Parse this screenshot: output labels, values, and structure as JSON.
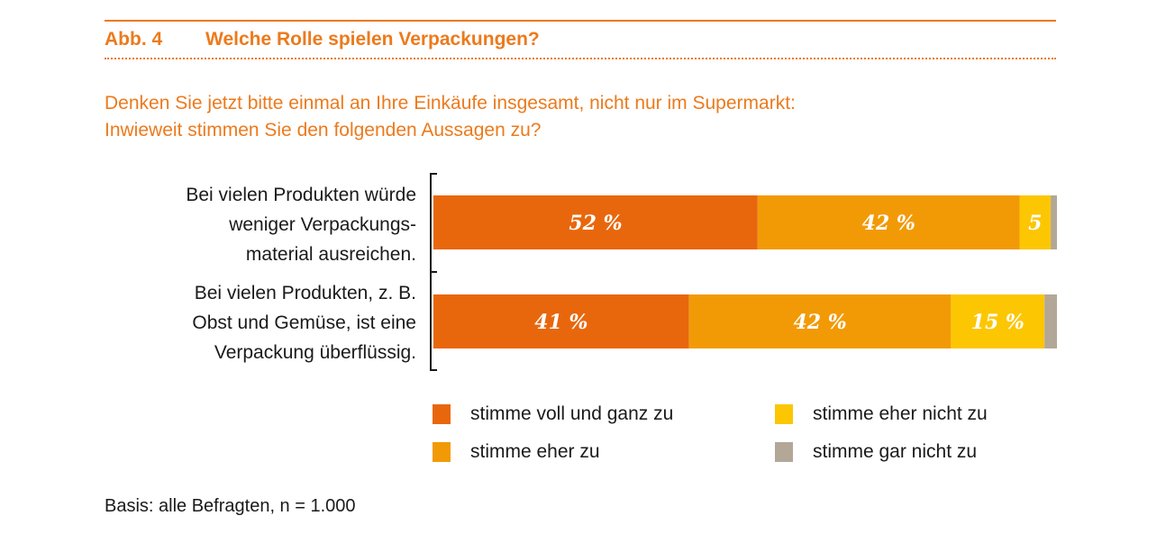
{
  "figure": {
    "number": "Abb. 4",
    "title": "Welche Rolle spielen Verpackungen?",
    "question_line1": "Denken Sie jetzt bitte einmal an Ihre Einkäufe insgesamt, nicht nur im Supermarkt:",
    "question_line2": "Inwieweit stimmen Sie den folgenden Aussagen zu?",
    "basis": "Basis: alle Befragten, n = 1.000",
    "accent_color": "#ec7a1c"
  },
  "chart_data": {
    "type": "bar",
    "orientation": "horizontal",
    "stacked": true,
    "title": "Welche Rolle spielen Verpackungen?",
    "xlabel": "",
    "ylabel": "",
    "xlim": [
      0,
      100
    ],
    "grid": false,
    "legend_position": "bottom",
    "categories": [
      {
        "lines": [
          "Bei vielen Produkten würde",
          "weniger Verpackungs-",
          "material ausreichen."
        ]
      },
      {
        "lines": [
          "Bei vielen Produkten, z. B.",
          "Obst und Gemüse, ist eine",
          "Verpackung überflüssig."
        ]
      }
    ],
    "series": [
      {
        "name": "stimme voll und ganz zu",
        "color": "#e8670c",
        "values": [
          52,
          41
        ],
        "labels": [
          "52 %",
          "41 %"
        ]
      },
      {
        "name": "stimme eher zu",
        "color": "#f29a05",
        "values": [
          42,
          42
        ],
        "labels": [
          "42 %",
          "42 %"
        ]
      },
      {
        "name": "stimme eher nicht zu",
        "color": "#fcc603",
        "values": [
          5,
          15
        ],
        "labels": [
          "5",
          "15 %"
        ]
      },
      {
        "name": "stimme gar nicht zu",
        "color": "#b3a797",
        "values": [
          1,
          2
        ],
        "labels": [
          "",
          ""
        ]
      }
    ]
  }
}
